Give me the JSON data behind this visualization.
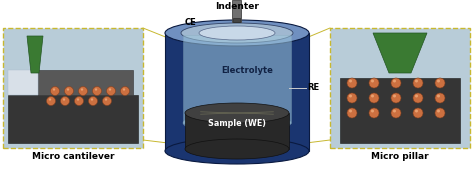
{
  "fig_w": 4.74,
  "fig_h": 1.73,
  "dpi": 100,
  "cylinder_body_color": "#1a3570",
  "cylinder_top_ring_color": "#7090c0",
  "cylinder_top_light": "#c8d8e8",
  "electrolyte_color": "#9fc8dc",
  "sample_dark": "#282828",
  "sample_mid": "#404040",
  "sample_top": "#505050",
  "indenter_color": "#707070",
  "green_color": "#3a7a32",
  "green_dark": "#225522",
  "cantilever_bg": "#b8ccd8",
  "pillar_bg": "#b8ccd8",
  "orange_face": "#cc7040",
  "orange_edge": "#804020",
  "box_edge": "#c8b830",
  "connect_line": "#c8b830",
  "dark_base": "#383838",
  "labels": {
    "indenter": "Indenter",
    "CE": "CE",
    "electrolyte": "Electrolyte",
    "RE": "RE",
    "sample": "Sample (WE)",
    "micro_cantilever": "Micro cantilever",
    "micro_pillar": "Micro pillar"
  }
}
